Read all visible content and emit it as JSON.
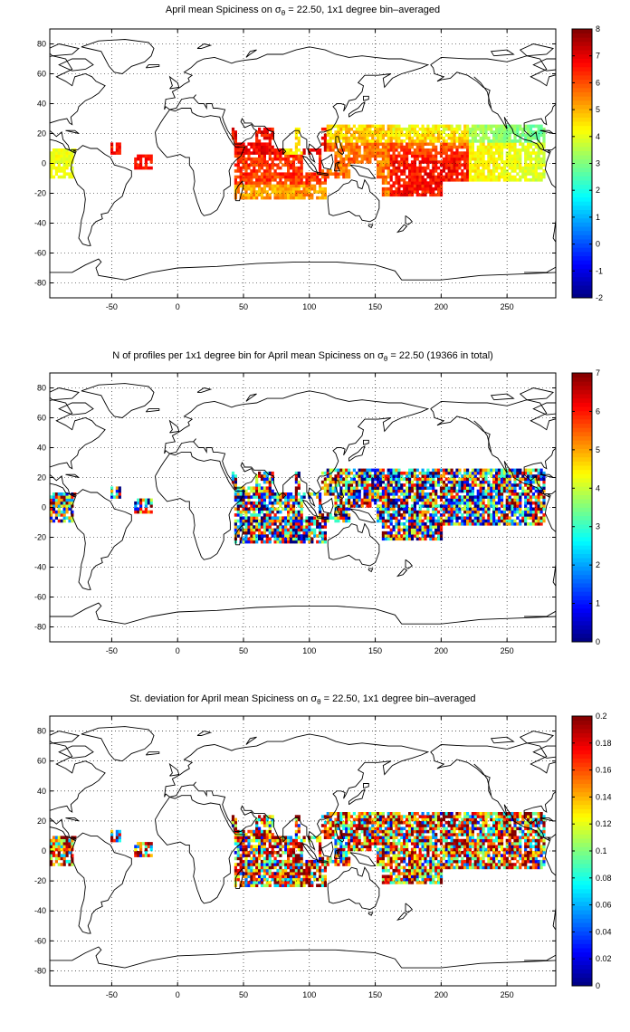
{
  "figure": {
    "panels": [
      {
        "id": "mean",
        "title": "April mean Spiciness on σθ = 22.50, 1x1 degree bin–averaged",
        "title_parts": {
          "pre": "April mean Spiciness on σ",
          "sub": "θ",
          "post": " = 22.50, 1x1 degree bin–averaged"
        },
        "colorbar": {
          "min": -2,
          "max": 8,
          "ticks": [
            "-2",
            "-1",
            "0",
            "1",
            "2",
            "3",
            "4",
            "5",
            "6",
            "7",
            "8"
          ]
        }
      },
      {
        "id": "count",
        "title": "N of profiles per 1x1 degree bin for April mean Spiciness on σθ = 22.50 (19366 in total)",
        "title_parts": {
          "pre": "N of profiles per 1x1 degree bin for April mean Spiciness on σ",
          "sub": "θ",
          "post": " = 22.50 (19366 in total)"
        },
        "colorbar": {
          "min": 0,
          "max": 7,
          "ticks": [
            "0",
            "1",
            "2",
            "3",
            "4",
            "5",
            "6",
            "7"
          ]
        }
      },
      {
        "id": "std",
        "title": "St. deviation for April mean Spiciness on σθ = 22.50, 1x1 degree bin–averaged",
        "title_parts": {
          "pre": "St. deviation for April mean Spiciness on σ",
          "sub": "θ",
          "post": " = 22.50, 1x1 degree bin–averaged"
        },
        "colorbar": {
          "min": 0,
          "max": 0.2,
          "ticks": [
            "0",
            "0.02",
            "0.04",
            "0.06",
            "0.08",
            "0.1",
            "0.12",
            "0.14",
            "0.16",
            "0.18",
            "0.2"
          ]
        }
      }
    ],
    "axes": {
      "x_ticks": [
        "-50",
        "0",
        "50",
        "100",
        "150",
        "200",
        "250"
      ],
      "y_ticks": [
        "80",
        "60",
        "40",
        "20",
        "0",
        "-20",
        "-40",
        "-60",
        "-80"
      ],
      "xlim": [
        -97,
        287
      ],
      "ylim": [
        -90,
        90
      ],
      "grid": "dotted"
    },
    "colormap": "jet",
    "coastline_color": "#000000"
  }
}
